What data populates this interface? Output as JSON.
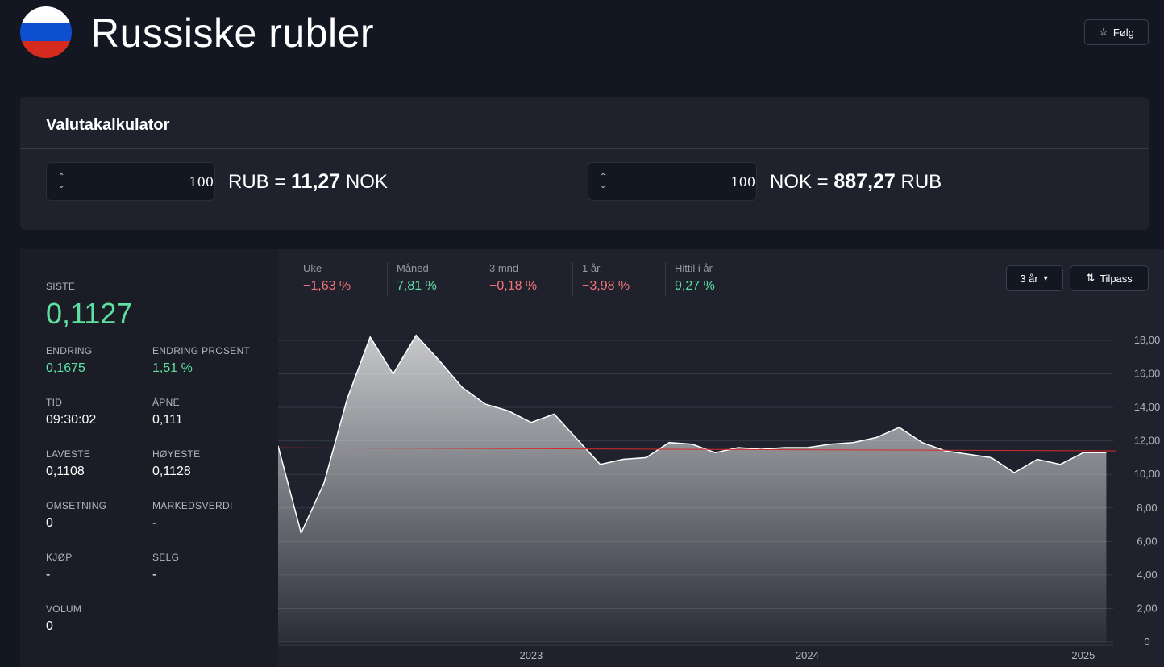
{
  "header": {
    "title": "Russiske rubler",
    "follow_label": "Følg",
    "flag_colors": [
      "#ffffff",
      "#0d4fcf",
      "#d52b1e"
    ]
  },
  "calculator": {
    "title": "Valutakalkulator",
    "left": {
      "amount": "100",
      "from": "RUB =",
      "result": "11,27",
      "to": "NOK"
    },
    "right": {
      "amount": "100",
      "from": "NOK =",
      "result": "887,27",
      "to": "RUB"
    }
  },
  "stats": {
    "siste": {
      "label": "SISTE",
      "value": "0,1127"
    },
    "endring": {
      "label": "ENDRING",
      "value": "0,1675"
    },
    "endring_prosent": {
      "label": "ENDRING PROSENT",
      "value": "1,51 %"
    },
    "tid": {
      "label": "TID",
      "value": "09:30:02"
    },
    "apne": {
      "label": "ÅPNE",
      "value": "0,111"
    },
    "laveste": {
      "label": "LAVESTE",
      "value": "0,1108"
    },
    "hoyeste": {
      "label": "HØYESTE",
      "value": "0,1128"
    },
    "omsetning": {
      "label": "OMSETNING",
      "value": "0"
    },
    "markedsverdi": {
      "label": "MARKEDSVERDI",
      "value": "-"
    },
    "kjop": {
      "label": "KJØP",
      "value": "-"
    },
    "selg": {
      "label": "SELG",
      "value": "-"
    },
    "volum": {
      "label": "VOLUM",
      "value": "0"
    }
  },
  "performance": [
    {
      "label": "Uke",
      "value": "−1,63 %",
      "trend": "down"
    },
    {
      "label": "Måned",
      "value": "7,81 %",
      "trend": "up"
    },
    {
      "label": "3 mnd",
      "value": "−0,18 %",
      "trend": "down"
    },
    {
      "label": "1 år",
      "value": "−3,98 %",
      "trend": "down"
    },
    {
      "label": "Hittil i år",
      "value": "9,27 %",
      "trend": "up"
    }
  ],
  "controls": {
    "range_label": "3 år",
    "adjust_label": "Tilpass"
  },
  "chart_data": {
    "type": "area",
    "x_ticks": [
      "2023",
      "2024",
      "2025"
    ],
    "y_ticks": [
      "0",
      "2,00",
      "4,00",
      "6,00",
      "8,00",
      "10,00",
      "12,00",
      "14,00",
      "16,00",
      "18,00"
    ],
    "ylim": [
      0,
      18
    ],
    "reference_line": 11.5,
    "x": [
      "2022-02",
      "2022-03",
      "2022-04",
      "2022-05",
      "2022-06",
      "2022-07",
      "2022-08",
      "2022-09",
      "2022-10",
      "2022-11",
      "2022-12",
      "2023-01",
      "2023-02",
      "2023-03",
      "2023-04",
      "2023-05",
      "2023-06",
      "2023-07",
      "2023-08",
      "2023-09",
      "2023-10",
      "2023-11",
      "2023-12",
      "2024-01",
      "2024-02",
      "2024-03",
      "2024-04",
      "2024-05",
      "2024-06",
      "2024-07",
      "2024-08",
      "2024-09",
      "2024-10",
      "2024-11",
      "2024-12",
      "2025-01",
      "2025-02"
    ],
    "values": [
      11.7,
      6.5,
      9.5,
      14.5,
      18.2,
      16.0,
      18.3,
      16.8,
      15.2,
      14.2,
      13.8,
      13.1,
      13.6,
      12.1,
      10.6,
      10.9,
      11.0,
      11.9,
      11.8,
      11.3,
      11.6,
      11.5,
      11.6,
      11.6,
      11.8,
      11.9,
      12.2,
      12.8,
      11.9,
      11.4,
      11.2,
      11.0,
      10.1,
      10.9,
      10.6,
      11.3,
      11.3
    ],
    "colors": {
      "line": "#ffffff",
      "reference": "#d62a2a",
      "grid": "#363a45"
    }
  }
}
